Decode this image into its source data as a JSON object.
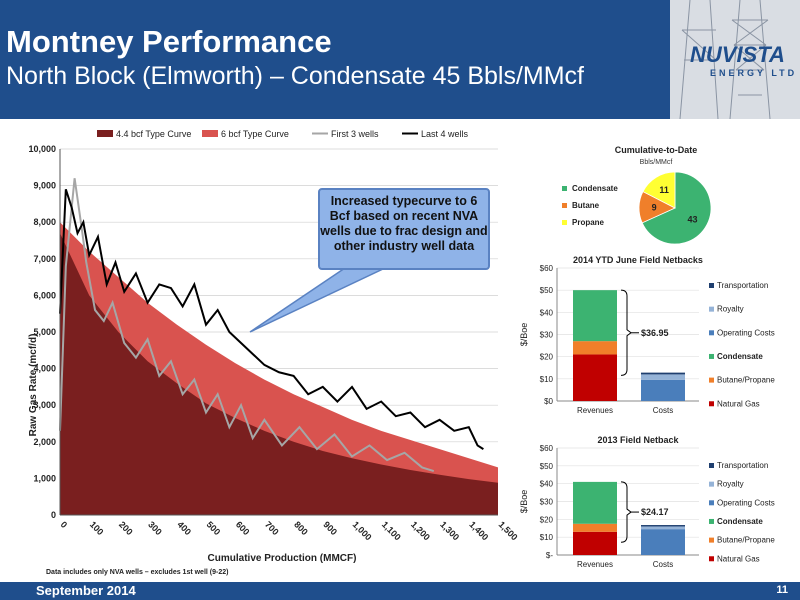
{
  "header": {
    "title": "Montney Performance",
    "subtitle": "North Block (Elmworth) – Condensate 45 Bbls/MMcf",
    "logo_text": "NUVISTA",
    "logo_sub": "ENERGY LTD"
  },
  "footer": {
    "date": "September 2014",
    "page": "11",
    "footnote": "Data includes only NVA wells – excludes 1st well (9-22)"
  },
  "callout": "Increased typecurve to 6 Bcf based on recent NVA wells due to frac design and other industry well data",
  "colors": {
    "header_bg": "#1f4e8c",
    "typecurve_44": "#7a1f1f",
    "typecurve_6": "#d9534f",
    "first3": "#a6a6a6",
    "last4": "#000000",
    "condensate": "#3cb371",
    "butane": "#f07f2a",
    "propane": "#ffff33",
    "natural_gas": "#c00000",
    "costs": "#4a7ebb"
  },
  "chart_data": [
    {
      "type": "area",
      "title": "",
      "xlabel": "Cumulative Production (MMCF)",
      "ylabel": "Raw Gas Rate (mcf/d)",
      "xlim": [
        0,
        1500
      ],
      "ylim": [
        0,
        10000
      ],
      "x_ticks": [
        "0",
        "100",
        "200",
        "300",
        "400",
        "500",
        "600",
        "700",
        "800",
        "900",
        "1,000",
        "1,100",
        "1,200",
        "1,300",
        "1,400",
        "1,500"
      ],
      "y_ticks": [
        "0",
        "1,000",
        "2,000",
        "3,000",
        "4,000",
        "5,000",
        "6,000",
        "7,000",
        "8,000",
        "9,000",
        "10,000"
      ],
      "legend_position": "top",
      "series": [
        {
          "name": "4.4 bcf Type Curve",
          "kind": "area",
          "x": [
            0,
            100,
            200,
            300,
            400,
            500,
            600,
            700,
            800,
            900,
            1000,
            1100,
            1200,
            1300,
            1400,
            1500
          ],
          "values": [
            7700,
            6000,
            5000,
            4200,
            3600,
            3050,
            2650,
            2300,
            2000,
            1750,
            1550,
            1380,
            1230,
            1100,
            980,
            880
          ]
        },
        {
          "name": "6 bcf Type Curve",
          "kind": "area",
          "x": [
            0,
            100,
            200,
            300,
            400,
            500,
            600,
            700,
            800,
            900,
            1000,
            1100,
            1200,
            1300,
            1400,
            1500
          ],
          "values": [
            8000,
            7200,
            6500,
            5800,
            5200,
            4650,
            4150,
            3700,
            3300,
            2950,
            2600,
            2300,
            2050,
            1800,
            1550,
            1300
          ]
        },
        {
          "name": "First 3 wells",
          "kind": "line",
          "x": [
            0,
            20,
            50,
            75,
            90,
            120,
            150,
            180,
            220,
            260,
            300,
            340,
            380,
            420,
            460,
            500,
            540,
            580,
            620,
            660,
            700,
            760,
            820,
            880,
            940,
            1000,
            1060,
            1120,
            1180,
            1240,
            1280
          ],
          "values": [
            2300,
            6800,
            9200,
            7800,
            6900,
            5600,
            5300,
            5800,
            4700,
            4300,
            4800,
            3800,
            4200,
            3300,
            3700,
            2800,
            3300,
            2400,
            3000,
            2100,
            2600,
            1900,
            2400,
            1800,
            2200,
            1600,
            1900,
            1500,
            1700,
            1300,
            1200
          ]
        },
        {
          "name": "Last 4 wells",
          "kind": "line",
          "x": [
            0,
            20,
            40,
            60,
            80,
            100,
            130,
            160,
            190,
            220,
            260,
            300,
            340,
            380,
            420,
            460,
            500,
            540,
            580,
            620,
            660,
            700,
            750,
            800,
            850,
            900,
            950,
            1000,
            1050,
            1100,
            1150,
            1200,
            1250,
            1300,
            1350,
            1400,
            1430,
            1450
          ],
          "values": [
            5500,
            8900,
            8400,
            7700,
            8000,
            7100,
            7600,
            6300,
            6900,
            6100,
            6600,
            5800,
            6300,
            6200,
            5700,
            6300,
            5200,
            5600,
            5000,
            4700,
            4400,
            4100,
            3900,
            3800,
            3300,
            3500,
            3100,
            3500,
            2900,
            3100,
            2700,
            2800,
            2400,
            2600,
            2300,
            2400,
            1900,
            1800
          ]
        }
      ]
    },
    {
      "type": "pie",
      "title": "Cumulative-to-Date",
      "subtitle": "Bbls/MMcf",
      "labels": [
        "Condensate",
        "Butane",
        "Propane"
      ],
      "values": [
        43,
        9,
        11
      ],
      "legend_position": "left"
    },
    {
      "type": "bar",
      "title": "2014 YTD June Field Netbacks",
      "ylabel": "$/Boe",
      "categories": [
        "Revenues",
        "Costs"
      ],
      "y_ticks": [
        "$0",
        "$10",
        "$20",
        "$30",
        "$40",
        "$50",
        "$60"
      ],
      "ylim": [
        0,
        60
      ],
      "stacked": true,
      "series": [
        {
          "name": "Natural Gas",
          "values": [
            21,
            0
          ]
        },
        {
          "name": "Butane/Propane",
          "values": [
            6,
            0
          ]
        },
        {
          "name": "Condensate",
          "values": [
            23,
            0
          ]
        },
        {
          "name": "Operating Costs",
          "values": [
            0,
            9.5
          ]
        },
        {
          "name": "Royalty",
          "values": [
            0,
            2.5
          ]
        },
        {
          "name": "Transportation",
          "values": [
            0,
            0.8
          ]
        }
      ],
      "annotation": "$36.95",
      "legend_position": "right"
    },
    {
      "type": "bar",
      "title": "2013 Field Netback",
      "ylabel": "$/Boe",
      "categories": [
        "Revenues",
        "Costs"
      ],
      "y_ticks": [
        "$-",
        "$10",
        "$20",
        "$30",
        "$40",
        "$50",
        "$60"
      ],
      "ylim": [
        0,
        60
      ],
      "stacked": true,
      "series": [
        {
          "name": "Natural Gas",
          "values": [
            13,
            0
          ]
        },
        {
          "name": "Butane/Propane",
          "values": [
            4.5,
            0
          ]
        },
        {
          "name": "Condensate",
          "values": [
            23.5,
            0
          ]
        },
        {
          "name": "Operating Costs",
          "values": [
            0,
            14.5
          ]
        },
        {
          "name": "Royalty",
          "values": [
            0,
            1.5
          ]
        },
        {
          "name": "Transportation",
          "values": [
            0,
            0.8
          ]
        }
      ],
      "annotation": "$24.17",
      "legend_position": "right"
    }
  ]
}
